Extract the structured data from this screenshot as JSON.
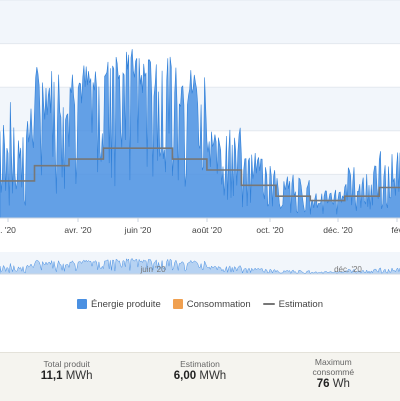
{
  "chart_data": {
    "type": "area",
    "x_tick_labels": [
      ". '20",
      "avr. '20",
      "juin '20",
      "août '20",
      "oct. '20",
      "déc. '20",
      "fév"
    ],
    "navigator_tick_labels": [
      "juin '20",
      "déc. '20"
    ],
    "series": [
      {
        "name": "Énergie produite",
        "color": "#4a90e2",
        "monthly_peak": [
          55,
          70,
          72,
          78,
          74,
          70,
          42,
          30,
          20,
          14,
          24,
          32
        ],
        "monthly_typical": [
          25,
          45,
          50,
          62,
          55,
          50,
          30,
          18,
          9,
          6,
          12,
          16
        ]
      },
      {
        "name": "Consommation",
        "color": "#f0a050",
        "values": []
      },
      {
        "name": "Estimation",
        "color": "#777777",
        "monthly_values": [
          17,
          24,
          27,
          32,
          32,
          27,
          22,
          15,
          10,
          8,
          10,
          14
        ]
      }
    ],
    "legend_position": "bottom-center",
    "grid": true
  },
  "stats": [
    {
      "label_lines": [
        "Total produit"
      ],
      "value": "11,1",
      "unit": "MWh"
    },
    {
      "label_lines": [
        "Estimation"
      ],
      "value": "6,00",
      "unit": "MWh"
    },
    {
      "label_lines": [
        "Maximum",
        "consommé"
      ],
      "value": "76",
      "unit": "Wh"
    }
  ]
}
